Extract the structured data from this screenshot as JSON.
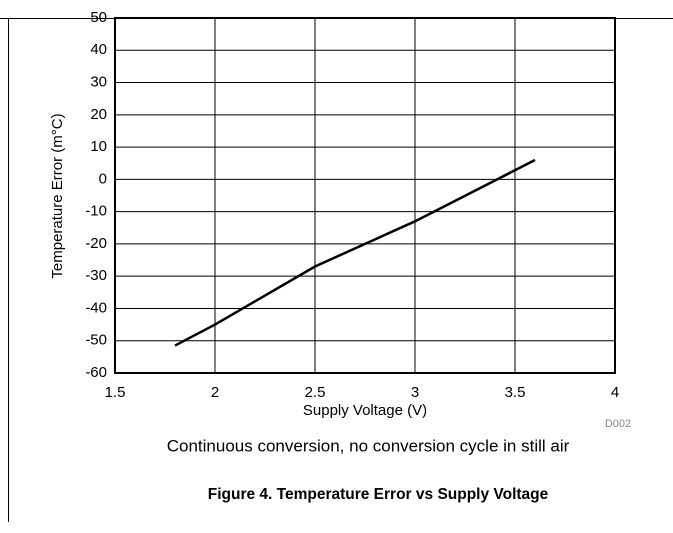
{
  "chart_data": {
    "type": "line",
    "x": [
      1.8,
      2,
      2.5,
      3,
      3.6
    ],
    "values": [
      -51.5,
      -45,
      -27,
      -13,
      6
    ],
    "color": "#000000",
    "xlabel": "Supply Voltage (V)",
    "ylabel": "Temperature Error (m°C)",
    "xlim": [
      1.5,
      4
    ],
    "xticks": [
      1.5,
      2,
      2.5,
      3,
      3.5,
      4
    ],
    "ylim": [
      -60,
      50
    ],
    "yticks": [
      -60,
      -50,
      -40,
      -30,
      -20,
      -10,
      0,
      10,
      20,
      30,
      40,
      50
    ],
    "grid": true,
    "annotation": "D002",
    "caption": "Continuous conversion, no conversion cycle in still air",
    "figure_title": "Figure 4. Temperature Error vs Supply Voltage"
  }
}
